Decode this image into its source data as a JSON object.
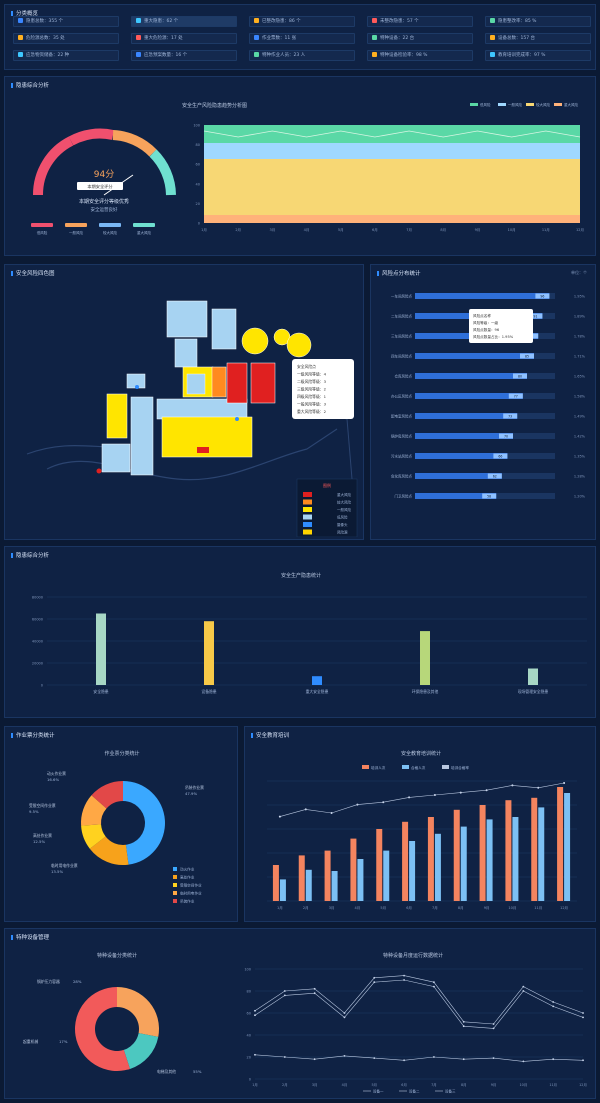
{
  "sections": {
    "top": "分类概览",
    "risk": "隐患综合分析",
    "map": "安全风险四色图",
    "rank": "风险点分布统计",
    "overview": "隐患综合分析",
    "work": "作业票分类统计",
    "safety": "安全教育培训",
    "training": "特种设备管理"
  },
  "chips": [
    {
      "label": "隐患总数：355 个",
      "color": "#3a86ff"
    },
    {
      "label": "重大隐患：62 个",
      "color": "#3ec7ff"
    },
    {
      "label": "已整改隐患：86 个",
      "color": "#ffb020"
    },
    {
      "label": "未整改隐患：57 个",
      "color": "#ff5a5a"
    },
    {
      "label": "隐患整改率：85 %",
      "color": "#5ad8a6"
    },
    {
      "label": "危险源总数：35 处",
      "color": "#ffb020"
    },
    {
      "label": "重大危险源：17 处",
      "color": "#ff5a5a"
    },
    {
      "label": "作业票数：11 张",
      "color": "#3a86ff"
    },
    {
      "label": "特种设备：22 台",
      "color": "#5ad8a6"
    },
    {
      "label": "设备总数：157 台",
      "color": "#ffb020"
    },
    {
      "label": "应急物资储备：22 种",
      "color": "#3ec7ff"
    },
    {
      "label": "应急预案数量：16 个",
      "color": "#3a86ff"
    },
    {
      "label": "特种作业人员：23 人",
      "color": "#5ad8a6"
    },
    {
      "label": "特种设备检验率：98 %",
      "color": "#ffb020"
    },
    {
      "label": "教育培训完成率：97 %",
      "color": "#3ec7ff"
    }
  ],
  "gauge": {
    "score": "94分",
    "tag": "本期安全评分",
    "line1": "本期安全评分等级优秀",
    "line2": "安全运营良好",
    "legend": [
      "低风险",
      "一般风险",
      "较大风险",
      "重大风险"
    ]
  },
  "area_chart": {
    "title": "安全生产风险隐患趋势分析图",
    "legend": [
      "低风险",
      "一般风险",
      "较大风险",
      "重大风险"
    ],
    "colors": [
      "#5ad8a6",
      "#9fd8ff",
      "#f7d774",
      "#ffb27a"
    ],
    "ylabels": [
      "100",
      "80",
      "60",
      "40",
      "20",
      "0"
    ],
    "xlabels": [
      "1月",
      "2月",
      "3月",
      "4月",
      "5月",
      "6月",
      "7月",
      "8月",
      "9月",
      "10月",
      "11月",
      "12月"
    ]
  },
  "map": {
    "popup": [
      "安全风险点",
      "一级风险等级：4",
      "二级风险等级：3",
      "三级风险等级：2",
      "四级风险等级：1",
      "一般风险等级：3",
      "重大风险等级：2"
    ],
    "legend_title": "图例",
    "legend": [
      {
        "label": "重大风险",
        "color": "#e02020"
      },
      {
        "label": "较大风险",
        "color": "#ff8a1f"
      },
      {
        "label": "一般风险",
        "color": "#ffe500"
      },
      {
        "label": "低风险",
        "color": "#a7d3f2"
      },
      {
        "label": "摄像头",
        "color": "#2f8cff"
      },
      {
        "label": "风险源",
        "color": "#ffd400"
      }
    ]
  },
  "rank": {
    "unit": "单位：个",
    "rows": [
      {
        "name": "一车间风险点",
        "value": 96,
        "right": "1.95%"
      },
      {
        "name": "二车间风险点",
        "value": 91,
        "right": "1.89%"
      },
      {
        "name": "三车间风险点",
        "value": 88,
        "right": "1.78%"
      },
      {
        "name": "四车间风险点",
        "value": 85,
        "right": "1.71%"
      },
      {
        "name": "仓库风险点",
        "value": 80,
        "right": "1.65%"
      },
      {
        "name": "办公区风险点",
        "value": 77,
        "right": "1.58%"
      },
      {
        "name": "配电室风险点",
        "value": 73,
        "right": "1.49%"
      },
      {
        "name": "锅炉房风险点",
        "value": 70,
        "right": "1.42%"
      },
      {
        "name": "污水站风险点",
        "value": 66,
        "right": "1.35%"
      },
      {
        "name": "危化库风险点",
        "value": 62,
        "right": "1.28%"
      },
      {
        "name": "门卫风险点",
        "value": 58,
        "right": "1.20%"
      }
    ],
    "tooltip": [
      "风险点名称",
      "风险等级：一级",
      "风险点数量：96",
      "风险点数量占比：1.95%"
    ]
  },
  "overview_chart": {
    "title": "安全生产隐患统计",
    "ylabels": [
      "80000",
      "60000",
      "40000",
      "20000",
      "0"
    ],
    "categories": [
      "安全隐患",
      "设备隐患",
      "重大安全隐患",
      "环保隐患及其他",
      "现场管理安全隐患"
    ],
    "values": [
      65000,
      58000,
      8000,
      49000,
      15000
    ],
    "colors": [
      "#a7d7c5",
      "#f7c948",
      "#2f8cff",
      "#b7d77a",
      "#a7d7c5"
    ]
  },
  "donut1": {
    "title": "作业票分类统计",
    "labels": [
      {
        "text": "动火作业票",
        "pct": "16.6%"
      },
      {
        "text": "受限空间作业票",
        "pct": "9.5%"
      },
      {
        "text": "高处作业票",
        "pct": "12.5%"
      },
      {
        "text": "临时用电作业票",
        "pct": "13.5%"
      },
      {
        "text": "吊装作业票",
        "pct": "47.9%"
      }
    ],
    "legend": [
      "动火作业",
      "高处作业",
      "受限空间作业",
      "临时用电作业",
      "吊装作业"
    ],
    "colors": [
      "#3aa8ff",
      "#f7a21b",
      "#ffd21f",
      "#ffa845",
      "#e24848"
    ],
    "values": [
      47.9,
      16.6,
      9.5,
      12.5,
      13.5
    ]
  },
  "combo": {
    "title": "安全教育培训统计",
    "legend": [
      "培训人次",
      "合格人次",
      "培训合格率"
    ],
    "colors": [
      "#f4845f",
      "#7cc0f4",
      "#b8c7e0"
    ],
    "xlabels": [
      "1月",
      "2月",
      "3月",
      "4月",
      "5月",
      "6月",
      "7月",
      "8月",
      "9月",
      "10月",
      "11月",
      "12月"
    ],
    "a": [
      30,
      38,
      42,
      52,
      60,
      66,
      70,
      76,
      80,
      84,
      86,
      95
    ],
    "b": [
      18,
      26,
      25,
      35,
      42,
      50,
      56,
      62,
      68,
      70,
      78,
      90
    ],
    "line": [
      62,
      68,
      65,
      72,
      74,
      78,
      80,
      82,
      84,
      88,
      86,
      90
    ]
  },
  "donut2": {
    "title": "特种设备分类统计",
    "labels": [
      {
        "text": "锅炉压力容器",
        "pct": "28%"
      },
      {
        "text": "起重机械",
        "pct": "17%"
      },
      {
        "text": "电梯及其他",
        "pct": "55%"
      }
    ],
    "colors": [
      "#f7a35c",
      "#4cc8c0",
      "#f25a5a"
    ],
    "values": [
      28,
      17,
      55
    ]
  },
  "lines": {
    "title": "特种设备月度运行数据统计",
    "legend": [
      "设备一",
      "设备二",
      "设备三"
    ],
    "ylabels": [
      "100",
      "80",
      "60",
      "40",
      "20",
      "0"
    ],
    "xlabels": [
      "1月",
      "2月",
      "3月",
      "4月",
      "5月",
      "6月",
      "7月",
      "8月",
      "9月",
      "10月",
      "11月",
      "12月"
    ],
    "s1": [
      62,
      80,
      82,
      60,
      92,
      94,
      88,
      52,
      50,
      84,
      70,
      60
    ],
    "s2": [
      58,
      76,
      78,
      56,
      88,
      90,
      84,
      48,
      46,
      80,
      66,
      56
    ],
    "s3": [
      22,
      20,
      18,
      21,
      19,
      17,
      20,
      18,
      19,
      16,
      18,
      17
    ]
  }
}
